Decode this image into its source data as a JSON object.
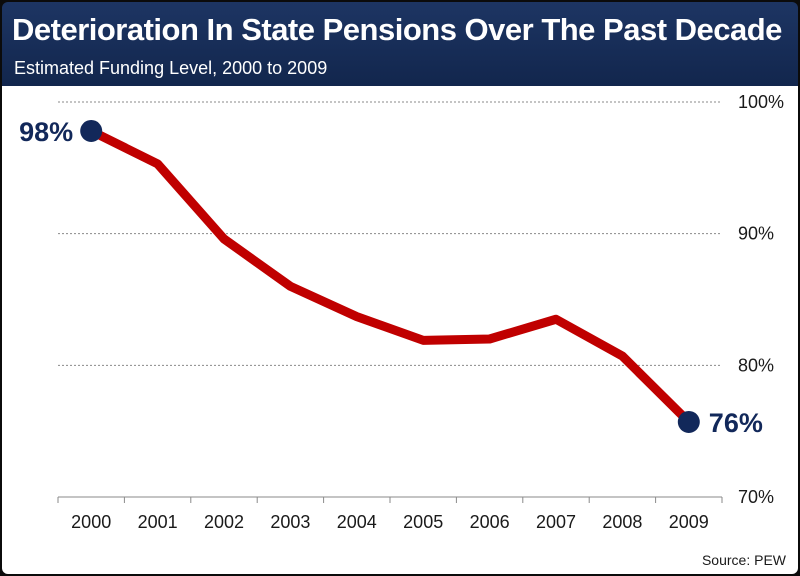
{
  "header": {
    "title": "Deterioration In State Pensions Over The Past Decade",
    "subtitle": "Estimated Funding Level, 2000 to 2009"
  },
  "source": "Source: PEW",
  "colors": {
    "line": "#c00000",
    "marker": "#12285a",
    "header": "#1a2f5a"
  },
  "chart_data": {
    "type": "line",
    "categories": [
      "2000",
      "2001",
      "2002",
      "2003",
      "2004",
      "2005",
      "2006",
      "2007",
      "2008",
      "2009"
    ],
    "values": [
      97.8,
      95.3,
      89.6,
      86.0,
      83.7,
      81.9,
      82.0,
      83.5,
      80.7,
      75.7
    ],
    "title": "Deterioration In State Pensions Over The Past Decade",
    "subtitle": "Estimated Funding Level, 2000 to 2009",
    "ylim": [
      70,
      100
    ],
    "yticks": [
      "70%",
      "80%",
      "90%",
      "100%"
    ],
    "ytick_values": [
      70,
      80,
      90,
      100
    ],
    "y_axis_side": "right",
    "grid": "horizontal dotted",
    "labels": [
      {
        "text": "98%",
        "index": 0
      },
      {
        "text": "76%",
        "index": 9
      }
    ]
  }
}
